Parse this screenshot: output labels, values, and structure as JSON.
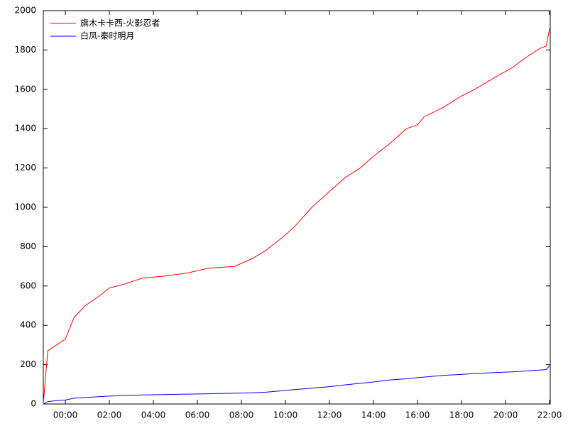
{
  "chart_data": {
    "type": "line",
    "x": [
      -1,
      -0.8,
      -0.4,
      0,
      0.4,
      0.9,
      1.5,
      2,
      2.7,
      3.5,
      4.5,
      5.5,
      6.5,
      7.7,
      8.5,
      9.1,
      9.9,
      10.4,
      11.2,
      12,
      12.7,
      13.4,
      14,
      14.7,
      15.5,
      16,
      16.3,
      17.2,
      17.9,
      18.6,
      19.5,
      20.3,
      20.9,
      21.6,
      21.85,
      22.0
    ],
    "series": [
      {
        "name": "旗木卡卡西-火影忍者",
        "color": "#ff0000",
        "values": [
          0,
          270,
          300,
          330,
          440,
          500,
          545,
          590,
          610,
          640,
          650,
          665,
          690,
          700,
          740,
          780,
          850,
          900,
          1000,
          1080,
          1150,
          1200,
          1260,
          1320,
          1400,
          1420,
          1460,
          1510,
          1560,
          1600,
          1660,
          1710,
          1760,
          1810,
          1820,
          1910
        ]
      },
      {
        "name": "白凤-秦时明月",
        "color": "#0000ff",
        "values": [
          0,
          12,
          17,
          20,
          30,
          33,
          37,
          40,
          43,
          46,
          48,
          50,
          52,
          55,
          57,
          60,
          68,
          73,
          80,
          88,
          97,
          105,
          112,
          122,
          128,
          134,
          137,
          146,
          150,
          155,
          160,
          163,
          168,
          173,
          175,
          195
        ]
      }
    ],
    "xlim": [
      -1,
      22.03
    ],
    "xticks": [
      {
        "value": 0,
        "label": "00:00"
      },
      {
        "value": 2,
        "label": "02:00"
      },
      {
        "value": 4,
        "label": "04:00"
      },
      {
        "value": 6,
        "label": "06:00"
      },
      {
        "value": 8,
        "label": "08:00"
      },
      {
        "value": 10,
        "label": "10:00"
      },
      {
        "value": 12,
        "label": "12:00"
      },
      {
        "value": 14,
        "label": "14:00"
      },
      {
        "value": 16,
        "label": "16:00"
      },
      {
        "value": 18,
        "label": "18:00"
      },
      {
        "value": 20,
        "label": "20:00"
      },
      {
        "value": 22,
        "label": "22:00"
      }
    ],
    "ylim": [
      0,
      2000
    ],
    "yticks": [
      0,
      200,
      400,
      600,
      800,
      1000,
      1200,
      1400,
      1600,
      1800,
      2000
    ],
    "grid": false,
    "legend": "top-left"
  }
}
